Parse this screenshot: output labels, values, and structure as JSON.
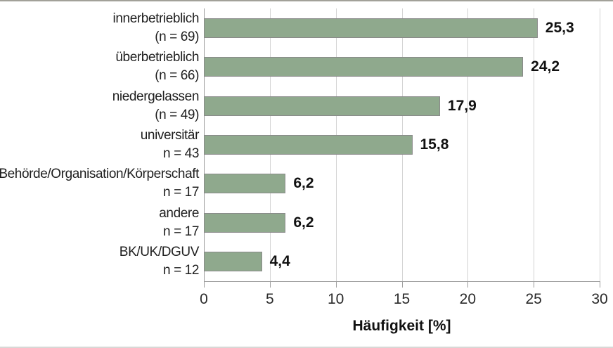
{
  "figure": {
    "background": "#ffffff",
    "top_rule_color": "#a2a199",
    "bottom_rule_color": "#d8d8d6"
  },
  "chart_data": {
    "type": "bar",
    "orientation": "horizontal",
    "title": "",
    "xlabel": "Häufigkeit [%]",
    "ylabel": "",
    "xlim": [
      0,
      30
    ],
    "xticks": [
      0,
      5,
      10,
      15,
      20,
      25,
      30
    ],
    "xtick_labels": [
      "0",
      "5",
      "10",
      "15",
      "20",
      "25",
      "30"
    ],
    "grid": "vertical gridlines at major ticks",
    "legend": false,
    "bars": [
      {
        "label": "innerbetrieblich",
        "sublabel": "(n = 69)",
        "value": 25.3,
        "value_label": "25,3"
      },
      {
        "label": "überbetrieblich",
        "sublabel": "(n = 66)",
        "value": 24.2,
        "value_label": "24,2"
      },
      {
        "label": "niedergelassen",
        "sublabel": "(n = 49)",
        "value": 17.9,
        "value_label": "17,9"
      },
      {
        "label": "universitär",
        "sublabel": "n = 43",
        "value": 15.8,
        "value_label": "15,8"
      },
      {
        "label": "Behörde/Organisation/Körperschaft",
        "sublabel": "n = 17",
        "value": 6.2,
        "value_label": "6,2"
      },
      {
        "label": "andere",
        "sublabel": "n = 17",
        "value": 6.2,
        "value_label": "6,2"
      },
      {
        "label": "BK/UK/DGUV",
        "sublabel": "n = 12",
        "value": 4.4,
        "value_label": "4,4"
      }
    ],
    "colors": {
      "bar_fill": "#8fa98d",
      "bar_border": "#8a8a8a",
      "gridline": "#d2d2d2",
      "axis": "#9b9b9b",
      "text": "#1f1f1f"
    }
  }
}
